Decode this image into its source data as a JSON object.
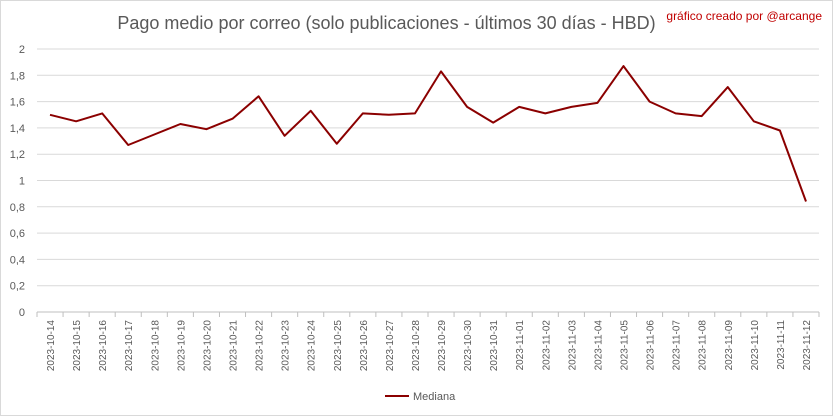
{
  "chart_data": {
    "type": "line",
    "title": "Pago medio por correo (solo publicaciones - últimos 30 días - HBD)",
    "credit": "gráfico creado por @arcange",
    "xlabel": "",
    "ylabel": "",
    "ylim": [
      0,
      2
    ],
    "yticks": [
      "0",
      "0,2",
      "0,4",
      "0,6",
      "0,8",
      "1",
      "1,2",
      "1,4",
      "1,6",
      "1,8",
      "2"
    ],
    "grid": true,
    "legend_position": "bottom",
    "line_color": "#8b0000",
    "x": [
      "2023-10-14",
      "2023-10-15",
      "2023-10-16",
      "2023-10-17",
      "2023-10-18",
      "2023-10-19",
      "2023-10-20",
      "2023-10-21",
      "2023-10-22",
      "2023-10-23",
      "2023-10-24",
      "2023-10-25",
      "2023-10-26",
      "2023-10-27",
      "2023-10-28",
      "2023-10-29",
      "2023-10-30",
      "2023-10-31",
      "2023-11-01",
      "2023-11-02",
      "2023-11-03",
      "2023-11-04",
      "2023-11-05",
      "2023-11-06",
      "2023-11-07",
      "2023-11-08",
      "2023-11-09",
      "2023-11-10",
      "2023-11-11",
      "2023-11-12"
    ],
    "series": [
      {
        "name": "Mediana",
        "values": [
          1.5,
          1.45,
          1.51,
          1.27,
          1.35,
          1.43,
          1.39,
          1.47,
          1.64,
          1.34,
          1.53,
          1.28,
          1.51,
          1.5,
          1.51,
          1.83,
          1.56,
          1.44,
          1.56,
          1.51,
          1.56,
          1.59,
          1.87,
          1.6,
          1.51,
          1.49,
          1.71,
          1.45,
          1.38,
          0.84
        ]
      }
    ]
  }
}
